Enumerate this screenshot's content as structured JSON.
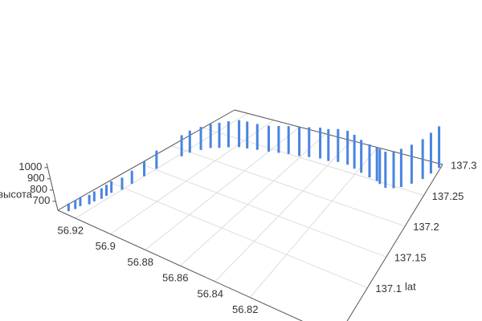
{
  "chart_data": {
    "type": "bar3D",
    "y_label": "lat",
    "z_label": "высота",
    "color": "#4a84e0",
    "xlim": [
      56.93,
      56.77
    ],
    "ylim": [
      137.02,
      137.3
    ],
    "zlim": [
      620,
      1040
    ],
    "xticks": [
      56.82,
      56.84,
      56.86,
      56.88,
      56.9,
      56.92
    ],
    "yticks": [
      137.1,
      137.15,
      137.2,
      137.25,
      137.3
    ],
    "zticks": [
      700,
      800,
      900,
      1000
    ],
    "grid": true,
    "series": [
      {
        "x": [
          56.926,
          56.925,
          56.925,
          56.923,
          56.923,
          56.922,
          56.922,
          56.922,
          56.92,
          56.92,
          56.92,
          56.92,
          56.918,
          56.917,
          56.914,
          56.911,
          56.907,
          56.903,
          56.898,
          56.893,
          56.887,
          56.88,
          56.874,
          56.868,
          56.861,
          56.855,
          56.848,
          56.842,
          56.836,
          56.829,
          56.823,
          56.817,
          56.81,
          56.804,
          56.801,
          56.796,
          56.791,
          56.787,
          56.782,
          56.777,
          56.774,
          56.771
        ],
        "y": [
          137.026,
          137.034,
          137.042,
          137.051,
          137.059,
          137.068,
          137.076,
          137.084,
          137.096,
          137.112,
          137.132,
          137.152,
          137.188,
          137.199,
          137.21,
          137.219,
          137.224,
          137.23,
          137.236,
          137.238,
          137.241,
          137.244,
          137.247,
          137.25,
          137.252,
          137.255,
          137.258,
          137.258,
          137.261,
          137.261,
          137.258,
          137.255,
          137.252,
          137.25,
          137.247,
          137.244,
          137.247,
          137.252,
          137.261,
          137.272,
          137.283,
          137.294
        ],
        "z": [
          690,
          700,
          700,
          705,
          710,
          715,
          720,
          725,
          730,
          740,
          760,
          790,
          820,
          830,
          840,
          850,
          860,
          870,
          880,
          880,
          870,
          870,
          880,
          890,
          900,
          910,
          920,
          930,
          940,
          950,
          950,
          940,
          940,
          950,
          960,
          970,
          980,
          990,
          1000,
          1010,
          1020,
          1030
        ]
      }
    ]
  }
}
